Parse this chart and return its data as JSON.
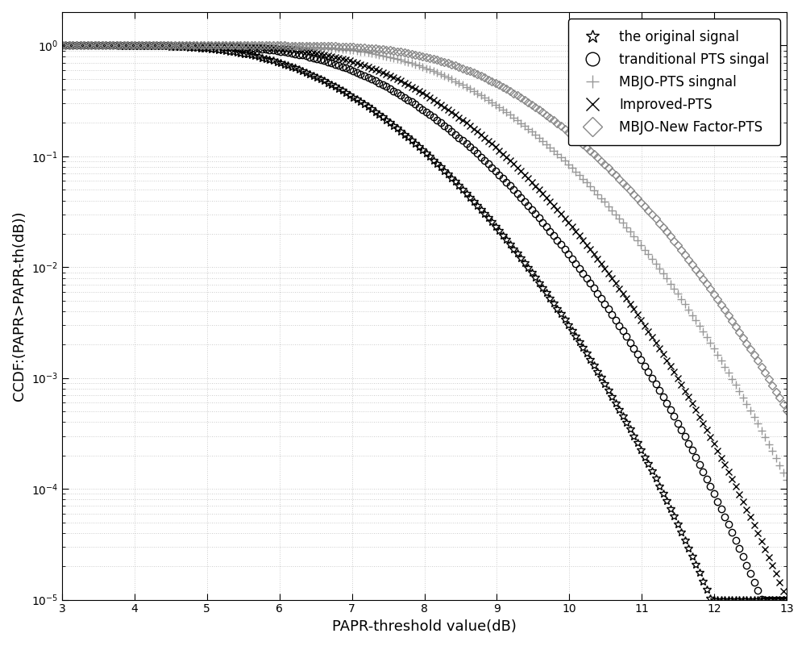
{
  "title": "",
  "xlabel": "PAPR-threshold value(dB)",
  "ylabel": "CCDF:(PAPR>PAPR-th(dB))",
  "xlim": [
    3,
    13
  ],
  "ylim": [
    1e-05,
    2
  ],
  "xticks": [
    3,
    4,
    5,
    6,
    7,
    8,
    9,
    10,
    11,
    12,
    13
  ],
  "series": {
    "original": {
      "label": "the original signal",
      "marker": "*",
      "color": "#000000",
      "markersize": 7,
      "markerfacecolor": "none"
    },
    "traditional": {
      "label": "tranditional PTS singal",
      "marker": "o",
      "color": "#000000",
      "markersize": 6,
      "markerfacecolor": "none"
    },
    "mbjo_pts": {
      "label": "MBJO-PTS singnal",
      "marker": "+",
      "color": "#999999",
      "markersize": 7,
      "markerfacecolor": "#999999"
    },
    "improved": {
      "label": "Improved-PTS",
      "marker": "x",
      "color": "#000000",
      "markersize": 6,
      "markerfacecolor": "#000000"
    },
    "mbjo_new": {
      "label": "MBJO-New Factor-PTS",
      "marker": "D",
      "color": "#888888",
      "markersize": 5,
      "markerfacecolor": "none"
    }
  },
  "background_color": "#ffffff",
  "grid_color": "#cccccc",
  "N_points": 200,
  "offsets": {
    "original": 0.0,
    "traditional": 0.7,
    "mbjo_pts": 1.8,
    "improved": 1.05,
    "mbjo_new": 2.3
  },
  "N_subcarriers": 64
}
